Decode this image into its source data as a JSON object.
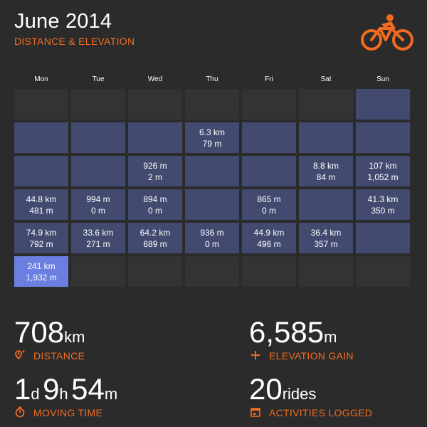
{
  "header": {
    "title": "June 2014",
    "subtitle": "DISTANCE & ELEVATION"
  },
  "weekdays": [
    "Mon",
    "Tue",
    "Wed",
    "Thu",
    "Fri",
    "Sat",
    "Sun"
  ],
  "calendar": [
    [
      {
        "state": "empty",
        "distance": "",
        "elevation": ""
      },
      {
        "state": "empty",
        "distance": "",
        "elevation": ""
      },
      {
        "state": "empty",
        "distance": "",
        "elevation": ""
      },
      {
        "state": "empty",
        "distance": "",
        "elevation": ""
      },
      {
        "state": "empty",
        "distance": "",
        "elevation": ""
      },
      {
        "state": "empty",
        "distance": "",
        "elevation": ""
      },
      {
        "state": "day",
        "distance": "",
        "elevation": ""
      }
    ],
    [
      {
        "state": "day",
        "distance": "",
        "elevation": ""
      },
      {
        "state": "day",
        "distance": "",
        "elevation": ""
      },
      {
        "state": "day",
        "distance": "",
        "elevation": ""
      },
      {
        "state": "day",
        "distance": "6.3 km",
        "elevation": "79 m"
      },
      {
        "state": "day",
        "distance": "",
        "elevation": ""
      },
      {
        "state": "day",
        "distance": "",
        "elevation": ""
      },
      {
        "state": "day",
        "distance": "",
        "elevation": ""
      }
    ],
    [
      {
        "state": "day",
        "distance": "",
        "elevation": ""
      },
      {
        "state": "day",
        "distance": "",
        "elevation": ""
      },
      {
        "state": "day",
        "distance": "926 m",
        "elevation": "2 m"
      },
      {
        "state": "day",
        "distance": "",
        "elevation": ""
      },
      {
        "state": "day",
        "distance": "",
        "elevation": ""
      },
      {
        "state": "day",
        "distance": "8.8 km",
        "elevation": "84 m"
      },
      {
        "state": "day",
        "distance": "107 km",
        "elevation": "1,052 m"
      }
    ],
    [
      {
        "state": "day",
        "distance": "44.8 km",
        "elevation": "481 m"
      },
      {
        "state": "day",
        "distance": "994 m",
        "elevation": "0 m"
      },
      {
        "state": "day",
        "distance": "894 m",
        "elevation": "0 m"
      },
      {
        "state": "day",
        "distance": "",
        "elevation": ""
      },
      {
        "state": "day",
        "distance": "865 m",
        "elevation": "0 m"
      },
      {
        "state": "day",
        "distance": "",
        "elevation": ""
      },
      {
        "state": "day",
        "distance": "41.3 km",
        "elevation": "350 m"
      }
    ],
    [
      {
        "state": "day",
        "distance": "74.9 km",
        "elevation": "792 m"
      },
      {
        "state": "day",
        "distance": "33.6 km",
        "elevation": "271 m"
      },
      {
        "state": "day",
        "distance": "64.2 km",
        "elevation": "689 m"
      },
      {
        "state": "day",
        "distance": "936 m",
        "elevation": "0 m"
      },
      {
        "state": "day",
        "distance": "44.9 km",
        "elevation": "496 m"
      },
      {
        "state": "day",
        "distance": "36.4 km",
        "elevation": "357 m"
      },
      {
        "state": "day",
        "distance": "",
        "elevation": ""
      }
    ],
    [
      {
        "state": "highlight",
        "distance": "241 km",
        "elevation": "1,932 m"
      },
      {
        "state": "empty",
        "distance": "",
        "elevation": ""
      },
      {
        "state": "empty",
        "distance": "",
        "elevation": ""
      },
      {
        "state": "empty",
        "distance": "",
        "elevation": ""
      },
      {
        "state": "empty",
        "distance": "",
        "elevation": ""
      },
      {
        "state": "empty",
        "distance": "",
        "elevation": ""
      },
      {
        "state": "empty",
        "distance": "",
        "elevation": ""
      }
    ]
  ],
  "stats": {
    "distance": {
      "value": "708",
      "unit": "km",
      "label": "DISTANCE",
      "icon": "map-pin-icon"
    },
    "elevation": {
      "value": "6,585",
      "unit": "m",
      "label": "ELEVATION GAIN",
      "icon": "plus-icon"
    },
    "moving_time": {
      "d_value": "1",
      "d_unit": "d",
      "h_value": "9",
      "h_unit": "h",
      "m_value": "54",
      "m_unit": "m",
      "label": "MOVING TIME",
      "icon": "stopwatch-icon"
    },
    "activities": {
      "value": "20",
      "unit": "rides",
      "label": "ACTIVITIES LOGGED",
      "icon": "calendar-icon"
    }
  },
  "colors": {
    "background": "#2b2b2b",
    "accent": "#f26b21",
    "cell_empty": "#333333",
    "cell_day": "#424a70",
    "cell_highlight": "#6b7fe0"
  }
}
